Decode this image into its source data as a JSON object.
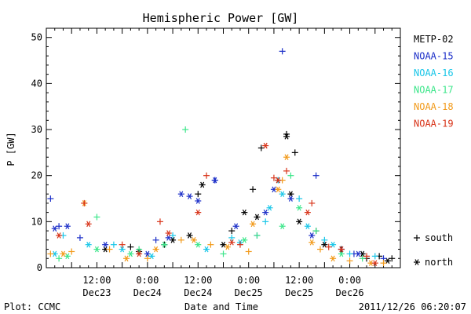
{
  "chart_data": {
    "type": "scatter",
    "title": "Hemispheric Power [GW]",
    "xlabel": "Date and Time",
    "ylabel": "P [GW]",
    "ylim": [
      0,
      52
    ],
    "xlim_hours": [
      0,
      84
    ],
    "yticks": [
      "0",
      "10",
      "20",
      "30",
      "40",
      "50"
    ],
    "xticks": [
      {
        "time": "12:00",
        "date": "Dec23",
        "x": 12
      },
      {
        "time": "0:00",
        "date": "Dec24",
        "x": 24
      },
      {
        "time": "12:00",
        "date": "Dec24",
        "x": 36
      },
      {
        "time": "0:00",
        "date": "Dec25",
        "x": 48
      },
      {
        "time": "12:00",
        "date": "Dec25",
        "x": 60
      },
      {
        "time": "0:00",
        "date": "Dec26",
        "x": 72
      }
    ],
    "marker_legend": [
      {
        "symbol": "+",
        "label": "south"
      },
      {
        "symbol": "*",
        "label": "north"
      }
    ],
    "series": [
      {
        "name": "METP-02",
        "color": "#000000",
        "south": [
          [
            20,
            4.5
          ],
          [
            28,
            5
          ],
          [
            36,
            16
          ],
          [
            44,
            8
          ],
          [
            49,
            17
          ],
          [
            51,
            26
          ],
          [
            57,
            29
          ],
          [
            59,
            25
          ],
          [
            64,
            8
          ],
          [
            70,
            4
          ],
          [
            76,
            2
          ],
          [
            79,
            2.5
          ],
          [
            82,
            2
          ]
        ],
        "north": [
          [
            14,
            4
          ],
          [
            22,
            3.5
          ],
          [
            30,
            6
          ],
          [
            34,
            7
          ],
          [
            37,
            18
          ],
          [
            42,
            5
          ],
          [
            47,
            12
          ],
          [
            50,
            11
          ],
          [
            55,
            19
          ],
          [
            57,
            28.5
          ],
          [
            58,
            16
          ],
          [
            60,
            10
          ],
          [
            66,
            5
          ],
          [
            75,
            3
          ],
          [
            81,
            1.5
          ]
        ]
      },
      {
        "name": "NOAA-15",
        "color": "#1c2fc8",
        "south": [
          [
            1,
            15
          ],
          [
            3,
            9
          ],
          [
            8,
            6.5
          ],
          [
            26,
            6
          ],
          [
            40,
            19
          ],
          [
            50,
            7
          ],
          [
            56,
            47
          ],
          [
            64,
            20
          ],
          [
            73,
            3
          ],
          [
            80,
            2
          ]
        ],
        "north": [
          [
            2,
            8.5
          ],
          [
            5,
            9
          ],
          [
            14,
            5
          ],
          [
            24,
            3
          ],
          [
            29,
            6.5
          ],
          [
            32,
            16
          ],
          [
            34,
            15.5
          ],
          [
            36,
            14.5
          ],
          [
            40,
            19
          ],
          [
            45,
            9
          ],
          [
            52,
            12
          ],
          [
            54,
            17
          ],
          [
            58,
            15
          ],
          [
            63,
            7
          ],
          [
            70,
            4
          ],
          [
            74,
            3
          ]
        ]
      },
      {
        "name": "NOAA-16",
        "color": "#18c6e8",
        "south": [
          [
            4,
            7
          ],
          [
            16,
            5
          ],
          [
            30,
            7
          ],
          [
            44,
            6.5
          ],
          [
            52,
            10
          ],
          [
            55,
            19
          ],
          [
            60,
            15
          ],
          [
            66,
            6
          ],
          [
            72,
            3
          ],
          [
            78,
            2.5
          ]
        ],
        "north": [
          [
            2,
            3
          ],
          [
            10,
            5
          ],
          [
            18,
            4
          ],
          [
            25,
            2.5
          ],
          [
            38,
            4
          ],
          [
            46,
            5.5
          ],
          [
            53,
            13
          ],
          [
            56,
            16
          ],
          [
            62,
            9
          ],
          [
            68,
            5
          ]
        ]
      },
      {
        "name": "NOAA-17",
        "color": "#3ce68a",
        "south": [
          [
            3,
            2
          ],
          [
            12,
            11
          ],
          [
            22,
            4
          ],
          [
            33,
            30
          ],
          [
            42,
            3
          ],
          [
            50,
            7
          ],
          [
            58,
            20
          ],
          [
            64,
            8
          ],
          [
            75,
            2
          ]
        ],
        "north": [
          [
            5,
            2.5
          ],
          [
            12,
            4
          ],
          [
            20,
            3
          ],
          [
            28,
            5
          ],
          [
            36,
            5
          ],
          [
            47,
            6
          ],
          [
            56,
            9
          ],
          [
            60,
            13
          ],
          [
            70,
            3
          ]
        ]
      },
      {
        "name": "NOAA-18",
        "color": "#f29a1a",
        "south": [
          [
            1,
            3
          ],
          [
            6,
            3.5
          ],
          [
            15,
            4
          ],
          [
            24,
            2
          ],
          [
            32,
            6
          ],
          [
            39,
            5
          ],
          [
            48,
            3.5
          ],
          [
            56,
            19
          ],
          [
            65,
            4
          ],
          [
            72,
            1.5
          ],
          [
            80,
            1
          ]
        ],
        "north": [
          [
            4,
            3
          ],
          [
            9,
            14
          ],
          [
            19,
            2
          ],
          [
            26,
            4
          ],
          [
            35,
            6
          ],
          [
            43,
            4.5
          ],
          [
            49,
            9.5
          ],
          [
            55,
            17
          ],
          [
            57,
            24
          ],
          [
            63,
            5.5
          ],
          [
            68,
            2
          ],
          [
            77,
            1
          ]
        ]
      },
      {
        "name": "NOAA-19",
        "color": "#d83318",
        "south": [
          [
            9,
            14
          ],
          [
            18,
            5
          ],
          [
            27,
            10
          ],
          [
            38,
            20
          ],
          [
            46,
            5
          ],
          [
            54,
            19.5
          ],
          [
            57,
            21
          ],
          [
            63,
            14
          ],
          [
            67,
            4.5
          ],
          [
            76,
            2.5
          ]
        ],
        "north": [
          [
            3,
            7
          ],
          [
            10,
            9.5
          ],
          [
            22,
            3
          ],
          [
            29,
            7.5
          ],
          [
            36,
            12
          ],
          [
            44,
            5.5
          ],
          [
            52,
            26.5
          ],
          [
            55,
            19
          ],
          [
            62,
            12
          ],
          [
            70,
            4
          ],
          [
            78,
            1
          ]
        ]
      }
    ]
  },
  "footer": {
    "plot_credit": "Plot: CCMC",
    "timestamp": "2011/12/26 06:20:07"
  }
}
